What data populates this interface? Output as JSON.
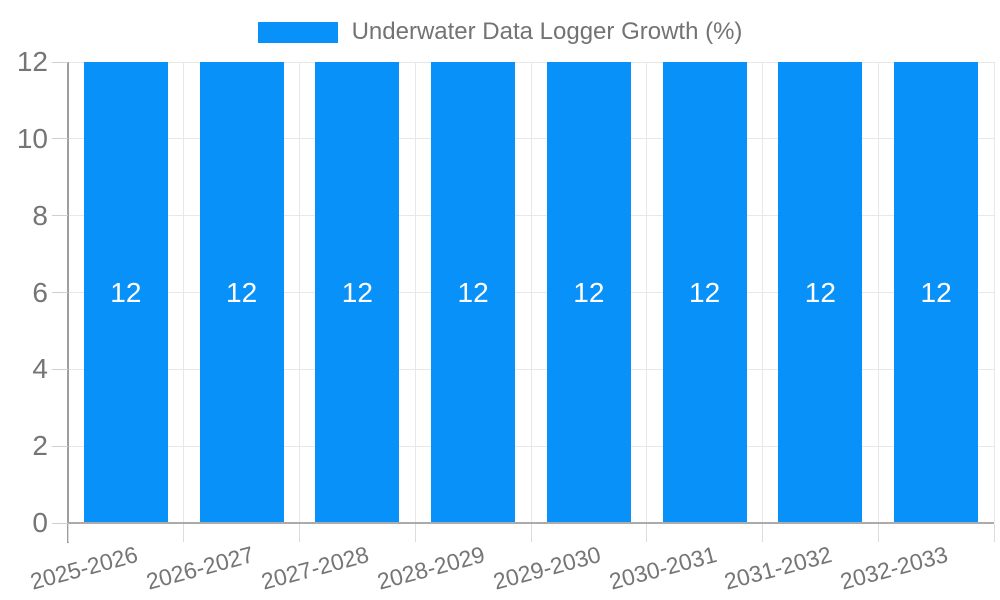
{
  "legend": {
    "label": "Underwater Data Logger Growth (%)"
  },
  "chart_data": {
    "type": "bar",
    "title": "Underwater Data Logger Growth (%)",
    "categories": [
      "2025-2026",
      "2026-2027",
      "2027-2028",
      "2028-2029",
      "2029-2030",
      "2030-2031",
      "2031-2032",
      "2032-2033"
    ],
    "values": [
      12,
      12,
      12,
      12,
      12,
      12,
      12,
      12
    ],
    "value_labels": [
      "12",
      "12",
      "12",
      "12",
      "12",
      "12",
      "12",
      "12"
    ],
    "series_name": "Underwater Data Logger Growth (%)",
    "xlabel": "",
    "ylabel": "",
    "ylim": [
      0,
      12
    ],
    "yticks": [
      0,
      2,
      4,
      6,
      8,
      10,
      12
    ],
    "grid": true,
    "legend_position": "top-center",
    "x_tick_rotation_deg": -15,
    "colors": {
      "bar": "#0991FA",
      "bar_label": "#FFFFFF",
      "axis_text": "#757575",
      "legend_text": "#737373",
      "gridline": "#E8E8E8",
      "axis_line": "#9E9E9E",
      "baseline": "#ABABAB",
      "ytick_mark": "#CFCFCF",
      "xtick_mark": "#DCDCDC",
      "background": "#FFFFFF"
    }
  }
}
